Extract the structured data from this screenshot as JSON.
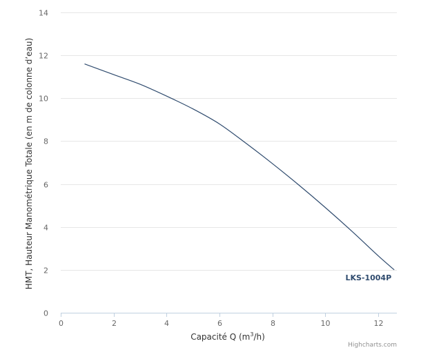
{
  "chart_data": {
    "type": "line",
    "xlabel_prefix": "Capacité Q (m",
    "xlabel_sup": "3",
    "xlabel_suffix": "/h)",
    "ylabel": "HMT, Hauteur Manométrique Totale (en m de colonne d’eau)",
    "xlim": [
      0,
      12.7
    ],
    "ylim": [
      0,
      14
    ],
    "x_ticks": [
      "0",
      "2",
      "4",
      "6",
      "8",
      "10",
      "12"
    ],
    "y_ticks": [
      "0",
      "2",
      "4",
      "6",
      "8",
      "10",
      "12",
      "14"
    ],
    "grid": "horizontal",
    "series": [
      {
        "name": "LKS-1004P",
        "color": "#2f4b6e",
        "x": [
          0.9,
          2,
          3,
          4,
          5,
          6,
          7,
          8,
          9,
          10,
          11,
          12,
          12.6
        ],
        "y": [
          11.6,
          11.1,
          10.65,
          10.1,
          9.5,
          8.8,
          7.9,
          6.95,
          5.95,
          4.9,
          3.8,
          2.65,
          2.0
        ]
      }
    ]
  },
  "credits": "Highcharts.com",
  "colors": {
    "grid": "#e6e6e6",
    "axis": "#c0d0e0",
    "series": "#2f4b6e"
  }
}
